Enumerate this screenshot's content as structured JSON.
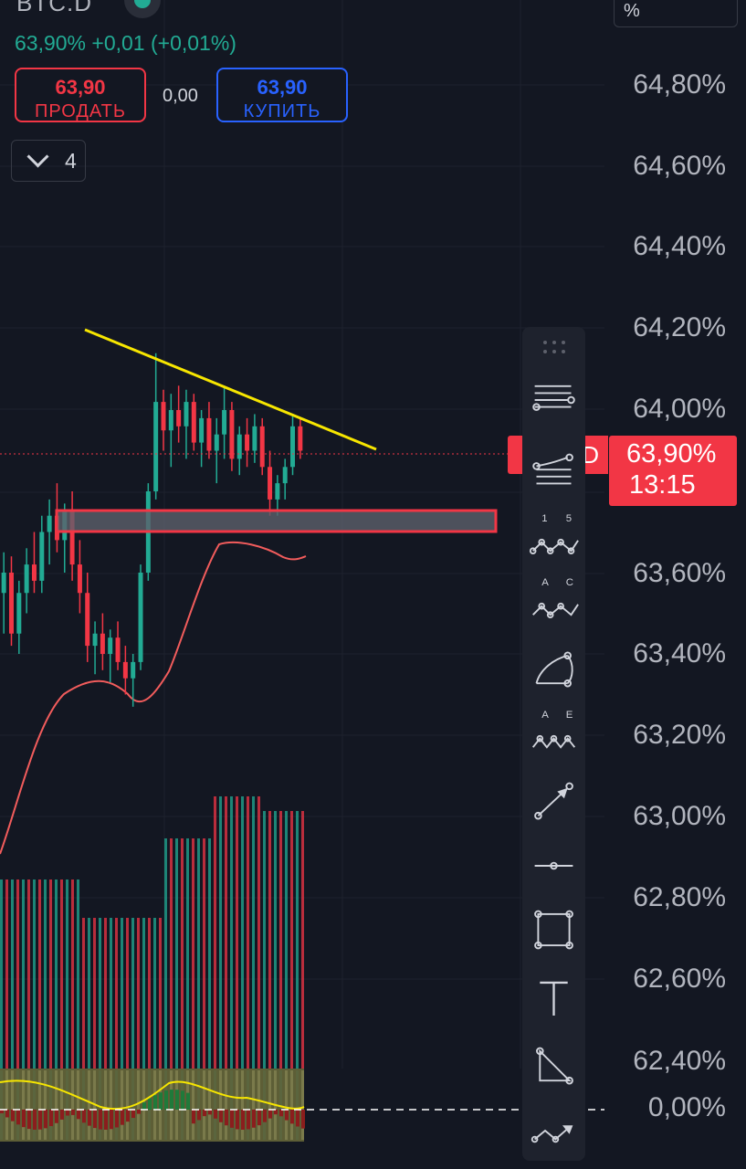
{
  "header": {
    "symbol": "BTC.D",
    "change": "63,90%  +0,01 (+0,01%)",
    "sell": {
      "value": "63,90",
      "label": "ПРОДАТЬ"
    },
    "buy": {
      "value": "63,90",
      "label": "КУПИТЬ"
    },
    "spread": "0,00",
    "collapse_count": "4",
    "scale_mode": "%"
  },
  "price_axis": {
    "labels": [
      "64,80%",
      "64,60%",
      "64,40%",
      "64,20%",
      "64,00%",
      "63,60%",
      "63,40%",
      "63,20%",
      "63,00%",
      "62,80%",
      "62,60%",
      "62,40%"
    ],
    "current_price": "63,90%",
    "countdown": "13:15",
    "indicator_zero": "0,00%",
    "ghost_label": "D"
  },
  "colors": {
    "background": "#131722",
    "up": "#22ab94",
    "down": "#f23645",
    "trendline": "#f7e600",
    "accent_blue": "#2962ff"
  },
  "chart_data": {
    "type": "candlestick",
    "y_range": [
      62.35,
      64.95
    ],
    "candles": [
      {
        "o": 63.55,
        "h": 63.65,
        "l": 63.45,
        "c": 63.6
      },
      {
        "o": 63.6,
        "h": 63.64,
        "l": 63.42,
        "c": 63.45
      },
      {
        "o": 63.45,
        "h": 63.58,
        "l": 63.4,
        "c": 63.55
      },
      {
        "o": 63.55,
        "h": 63.66,
        "l": 63.5,
        "c": 63.62
      },
      {
        "o": 63.62,
        "h": 63.7,
        "l": 63.55,
        "c": 63.58
      },
      {
        "o": 63.58,
        "h": 63.74,
        "l": 63.55,
        "c": 63.7
      },
      {
        "o": 63.7,
        "h": 63.78,
        "l": 63.62,
        "c": 63.74
      },
      {
        "o": 63.74,
        "h": 63.82,
        "l": 63.65,
        "c": 63.68
      },
      {
        "o": 63.68,
        "h": 63.77,
        "l": 63.6,
        "c": 63.75
      },
      {
        "o": 63.75,
        "h": 63.8,
        "l": 63.58,
        "c": 63.62
      },
      {
        "o": 63.62,
        "h": 63.68,
        "l": 63.5,
        "c": 63.55
      },
      {
        "o": 63.55,
        "h": 63.6,
        "l": 63.38,
        "c": 63.42
      },
      {
        "o": 63.42,
        "h": 63.48,
        "l": 63.35,
        "c": 63.45
      },
      {
        "o": 63.45,
        "h": 63.5,
        "l": 63.36,
        "c": 63.4
      },
      {
        "o": 63.4,
        "h": 63.46,
        "l": 63.33,
        "c": 63.44
      },
      {
        "o": 63.44,
        "h": 63.48,
        "l": 63.36,
        "c": 63.38
      },
      {
        "o": 63.38,
        "h": 63.42,
        "l": 63.3,
        "c": 63.34
      },
      {
        "o": 63.34,
        "h": 63.4,
        "l": 63.27,
        "c": 63.38
      },
      {
        "o": 63.38,
        "h": 63.62,
        "l": 63.36,
        "c": 63.6
      },
      {
        "o": 63.6,
        "h": 63.82,
        "l": 63.58,
        "c": 63.8
      },
      {
        "o": 63.8,
        "h": 64.14,
        "l": 63.78,
        "c": 64.02
      },
      {
        "o": 64.02,
        "h": 64.05,
        "l": 63.9,
        "c": 63.95
      },
      {
        "o": 63.95,
        "h": 64.04,
        "l": 63.86,
        "c": 64.0
      },
      {
        "o": 64.0,
        "h": 64.06,
        "l": 63.92,
        "c": 63.96
      },
      {
        "o": 63.96,
        "h": 64.05,
        "l": 63.88,
        "c": 64.02
      },
      {
        "o": 64.02,
        "h": 64.04,
        "l": 63.9,
        "c": 63.92
      },
      {
        "o": 63.92,
        "h": 64.0,
        "l": 63.86,
        "c": 63.98
      },
      {
        "o": 63.98,
        "h": 64.02,
        "l": 63.88,
        "c": 63.9
      },
      {
        "o": 63.9,
        "h": 63.98,
        "l": 63.82,
        "c": 63.94
      },
      {
        "o": 63.94,
        "h": 64.06,
        "l": 63.88,
        "c": 64.0
      },
      {
        "o": 64.0,
        "h": 64.02,
        "l": 63.85,
        "c": 63.88
      },
      {
        "o": 63.88,
        "h": 63.96,
        "l": 63.84,
        "c": 63.94
      },
      {
        "o": 63.94,
        "h": 63.98,
        "l": 63.86,
        "c": 63.9
      },
      {
        "o": 63.9,
        "h": 63.99,
        "l": 63.87,
        "c": 63.96
      },
      {
        "o": 63.96,
        "h": 63.98,
        "l": 63.84,
        "c": 63.86
      },
      {
        "o": 63.86,
        "h": 63.9,
        "l": 63.74,
        "c": 63.78
      },
      {
        "o": 63.78,
        "h": 63.84,
        "l": 63.74,
        "c": 63.82
      },
      {
        "o": 63.82,
        "h": 63.88,
        "l": 63.78,
        "c": 63.86
      },
      {
        "o": 63.86,
        "h": 63.99,
        "l": 63.84,
        "c": 63.96
      },
      {
        "o": 63.96,
        "h": 63.98,
        "l": 63.88,
        "c": 63.9
      }
    ],
    "support_zone": [
      63.745,
      63.795
    ],
    "trendline": [
      [
        64.18,
        "start"
      ],
      [
        63.88,
        "end"
      ]
    ]
  },
  "toolbar": {
    "tools": [
      {
        "name": "fib-retracement-icon"
      },
      {
        "name": "fib-fan-icon"
      },
      {
        "name": "xabcd-pattern-icon",
        "l1": "1",
        "l2": "5"
      },
      {
        "name": "abcd-pattern-icon",
        "l1": "A",
        "l2": "C"
      },
      {
        "name": "arc-icon"
      },
      {
        "name": "elliott-wave-icon",
        "l1": "A",
        "l2": "E"
      },
      {
        "name": "arrow-icon"
      },
      {
        "name": "horizontal-ray-icon"
      },
      {
        "name": "rectangle-icon"
      },
      {
        "name": "text-icon",
        "t": "T"
      },
      {
        "name": "triangle-icon"
      },
      {
        "name": "path-icon"
      }
    ]
  }
}
